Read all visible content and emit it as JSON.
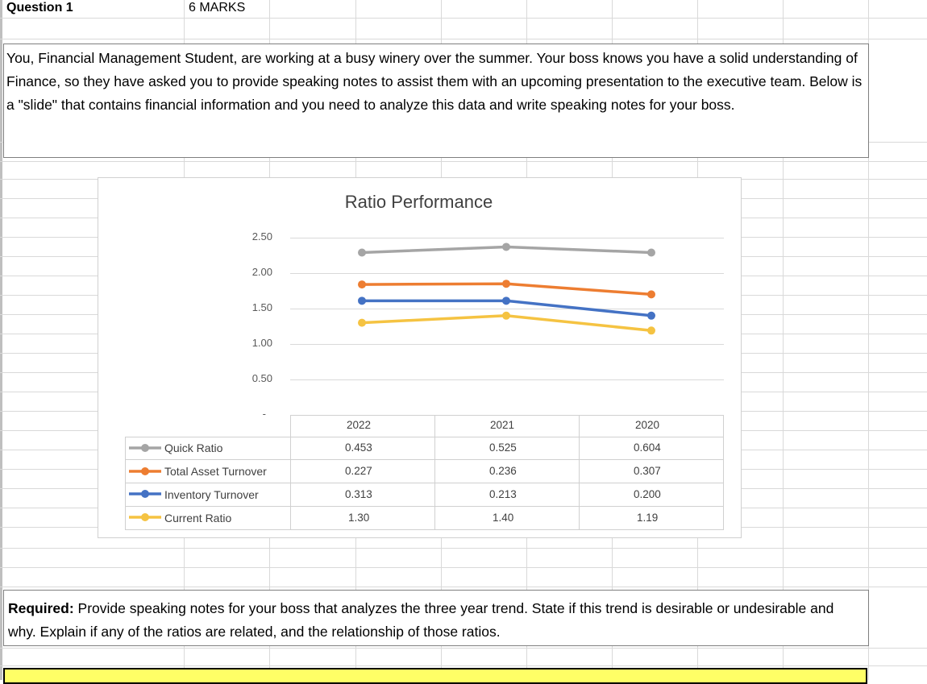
{
  "header": {
    "question_label": "Question 1",
    "marks_label": "6 MARKS"
  },
  "intro": {
    "text": "You, Financial Management Student, are working at a busy winery over the summer. Your boss knows you have a solid understanding of Finance, so they have asked you to provide speaking notes to assist them with an upcoming presentation to the executive team. Below is a \"slide\" that contains financial information and you need to analyze this data and write speaking notes for your boss."
  },
  "chart_data": {
    "type": "line",
    "title": "Ratio Performance",
    "categories": [
      "2022",
      "2021",
      "2020"
    ],
    "ylim": [
      0,
      2.5
    ],
    "y_ticks": [
      "2.50",
      "2.00",
      "1.50",
      "1.00",
      "0.50",
      "-"
    ],
    "legend_placement": "bottom-left (data table)",
    "series": [
      {
        "name": "Quick Ratio",
        "color": "#a5a5a5",
        "values": [
          2.29,
          2.37,
          2.29
        ],
        "table_values": [
          "0.453",
          "0.525",
          "0.604"
        ]
      },
      {
        "name": "Total Asset Turnover",
        "color": "#ed7d31",
        "values": [
          1.84,
          1.85,
          1.7
        ],
        "table_values": [
          "0.227",
          "0.236",
          "0.307"
        ]
      },
      {
        "name": "Inventory Turnover",
        "color": "#4472c4",
        "values": [
          1.61,
          1.61,
          1.4
        ],
        "table_values": [
          "0.313",
          "0.213",
          "0.200"
        ]
      },
      {
        "name": "Current Ratio",
        "color": "#f5c342",
        "values": [
          1.3,
          1.4,
          1.19
        ],
        "table_values": [
          "1.30",
          "1.40",
          "1.19"
        ]
      }
    ]
  },
  "required": {
    "label": "Required:",
    "text": " Provide speaking notes for your boss that analyzes the three year trend. State if this trend is desirable or undesirable and why.  Explain if any of the ratios are related, and the relationship of those ratios."
  },
  "colors": {
    "answer_box": "#ffff66"
  }
}
